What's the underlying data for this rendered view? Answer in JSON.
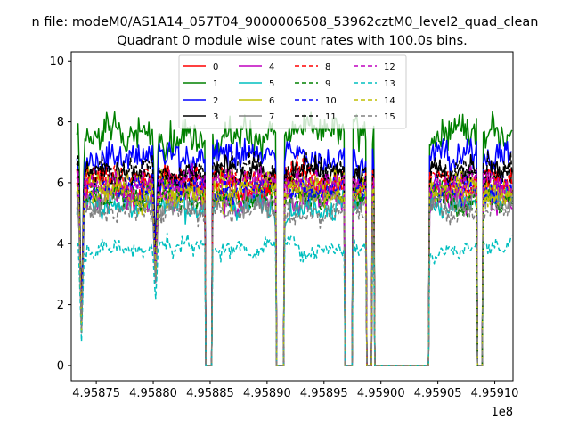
{
  "chart_data": {
    "type": "line",
    "suptitle": "n file: modeM0/AS1A14_057T04_9000006508_53962cztM0_level2_quad_clean",
    "title": "Quadrant 0 module wise count rates with 100.0s bins.",
    "xlabel": "",
    "ylabel": "",
    "x_offset_label": "1e8",
    "xlim": [
      4.958728,
      4.959116
    ],
    "ylim": [
      -0.5,
      10.3
    ],
    "x_ticks": [
      4.95875,
      4.9588,
      4.95885,
      4.9589,
      4.95895,
      4.959,
      4.95905,
      4.9591
    ],
    "x_tick_labels": [
      "4.95875",
      "4.95880",
      "4.95885",
      "4.95890",
      "4.95895",
      "4.95900",
      "4.95905",
      "4.95910"
    ],
    "y_ticks": [
      0,
      2,
      4,
      6,
      8,
      10
    ],
    "y_tick_labels": [
      "0",
      "2",
      "4",
      "6",
      "8",
      "10"
    ],
    "x_start": 4.958733,
    "x_end": 4.959115,
    "n_bins": 382,
    "gaps": [
      [
        4.958846,
        4.958852
      ],
      [
        4.958908,
        4.958915
      ],
      [
        4.958968,
        4.958975
      ],
      [
        4.958987,
        4.958992
      ],
      [
        4.958994,
        4.959042
      ],
      [
        4.959084,
        4.959089
      ]
    ],
    "dips": [
      {
        "center": 4.958737,
        "depth": 0.8
      },
      {
        "center": 4.958802,
        "depth": 0.5
      }
    ],
    "legend_position": "top-center",
    "legend_columns": 4,
    "series": [
      {
        "name": "0",
        "color": "#ff0000",
        "style": "solid",
        "mean": 5.8
      },
      {
        "name": "1",
        "color": "#008000",
        "style": "solid",
        "mean": 7.6
      },
      {
        "name": "2",
        "color": "#0000ff",
        "style": "solid",
        "mean": 6.9
      },
      {
        "name": "3",
        "color": "#000000",
        "style": "solid",
        "mean": 6.3
      },
      {
        "name": "4",
        "color": "#bf00bf",
        "style": "solid",
        "mean": 5.5
      },
      {
        "name": "5",
        "color": "#00bfbf",
        "style": "solid",
        "mean": 5.3
      },
      {
        "name": "6",
        "color": "#bfbf00",
        "style": "solid",
        "mean": 5.9
      },
      {
        "name": "7",
        "color": "#808080",
        "style": "solid",
        "mean": 5.4
      },
      {
        "name": "8",
        "color": "#ff0000",
        "style": "dashed",
        "mean": 6.1
      },
      {
        "name": "9",
        "color": "#008000",
        "style": "dashed",
        "mean": 5.6
      },
      {
        "name": "10",
        "color": "#0000ff",
        "style": "dashed",
        "mean": 5.8
      },
      {
        "name": "11",
        "color": "#000000",
        "style": "dashed",
        "mean": 6.4
      },
      {
        "name": "12",
        "color": "#bf00bf",
        "style": "dashed",
        "mean": 6.0
      },
      {
        "name": "13",
        "color": "#00bfbf",
        "style": "dashed",
        "mean": 3.9
      },
      {
        "name": "14",
        "color": "#bfbf00",
        "style": "dashed",
        "mean": 5.7
      },
      {
        "name": "15",
        "color": "#808080",
        "style": "dashed",
        "mean": 5.1
      }
    ]
  }
}
